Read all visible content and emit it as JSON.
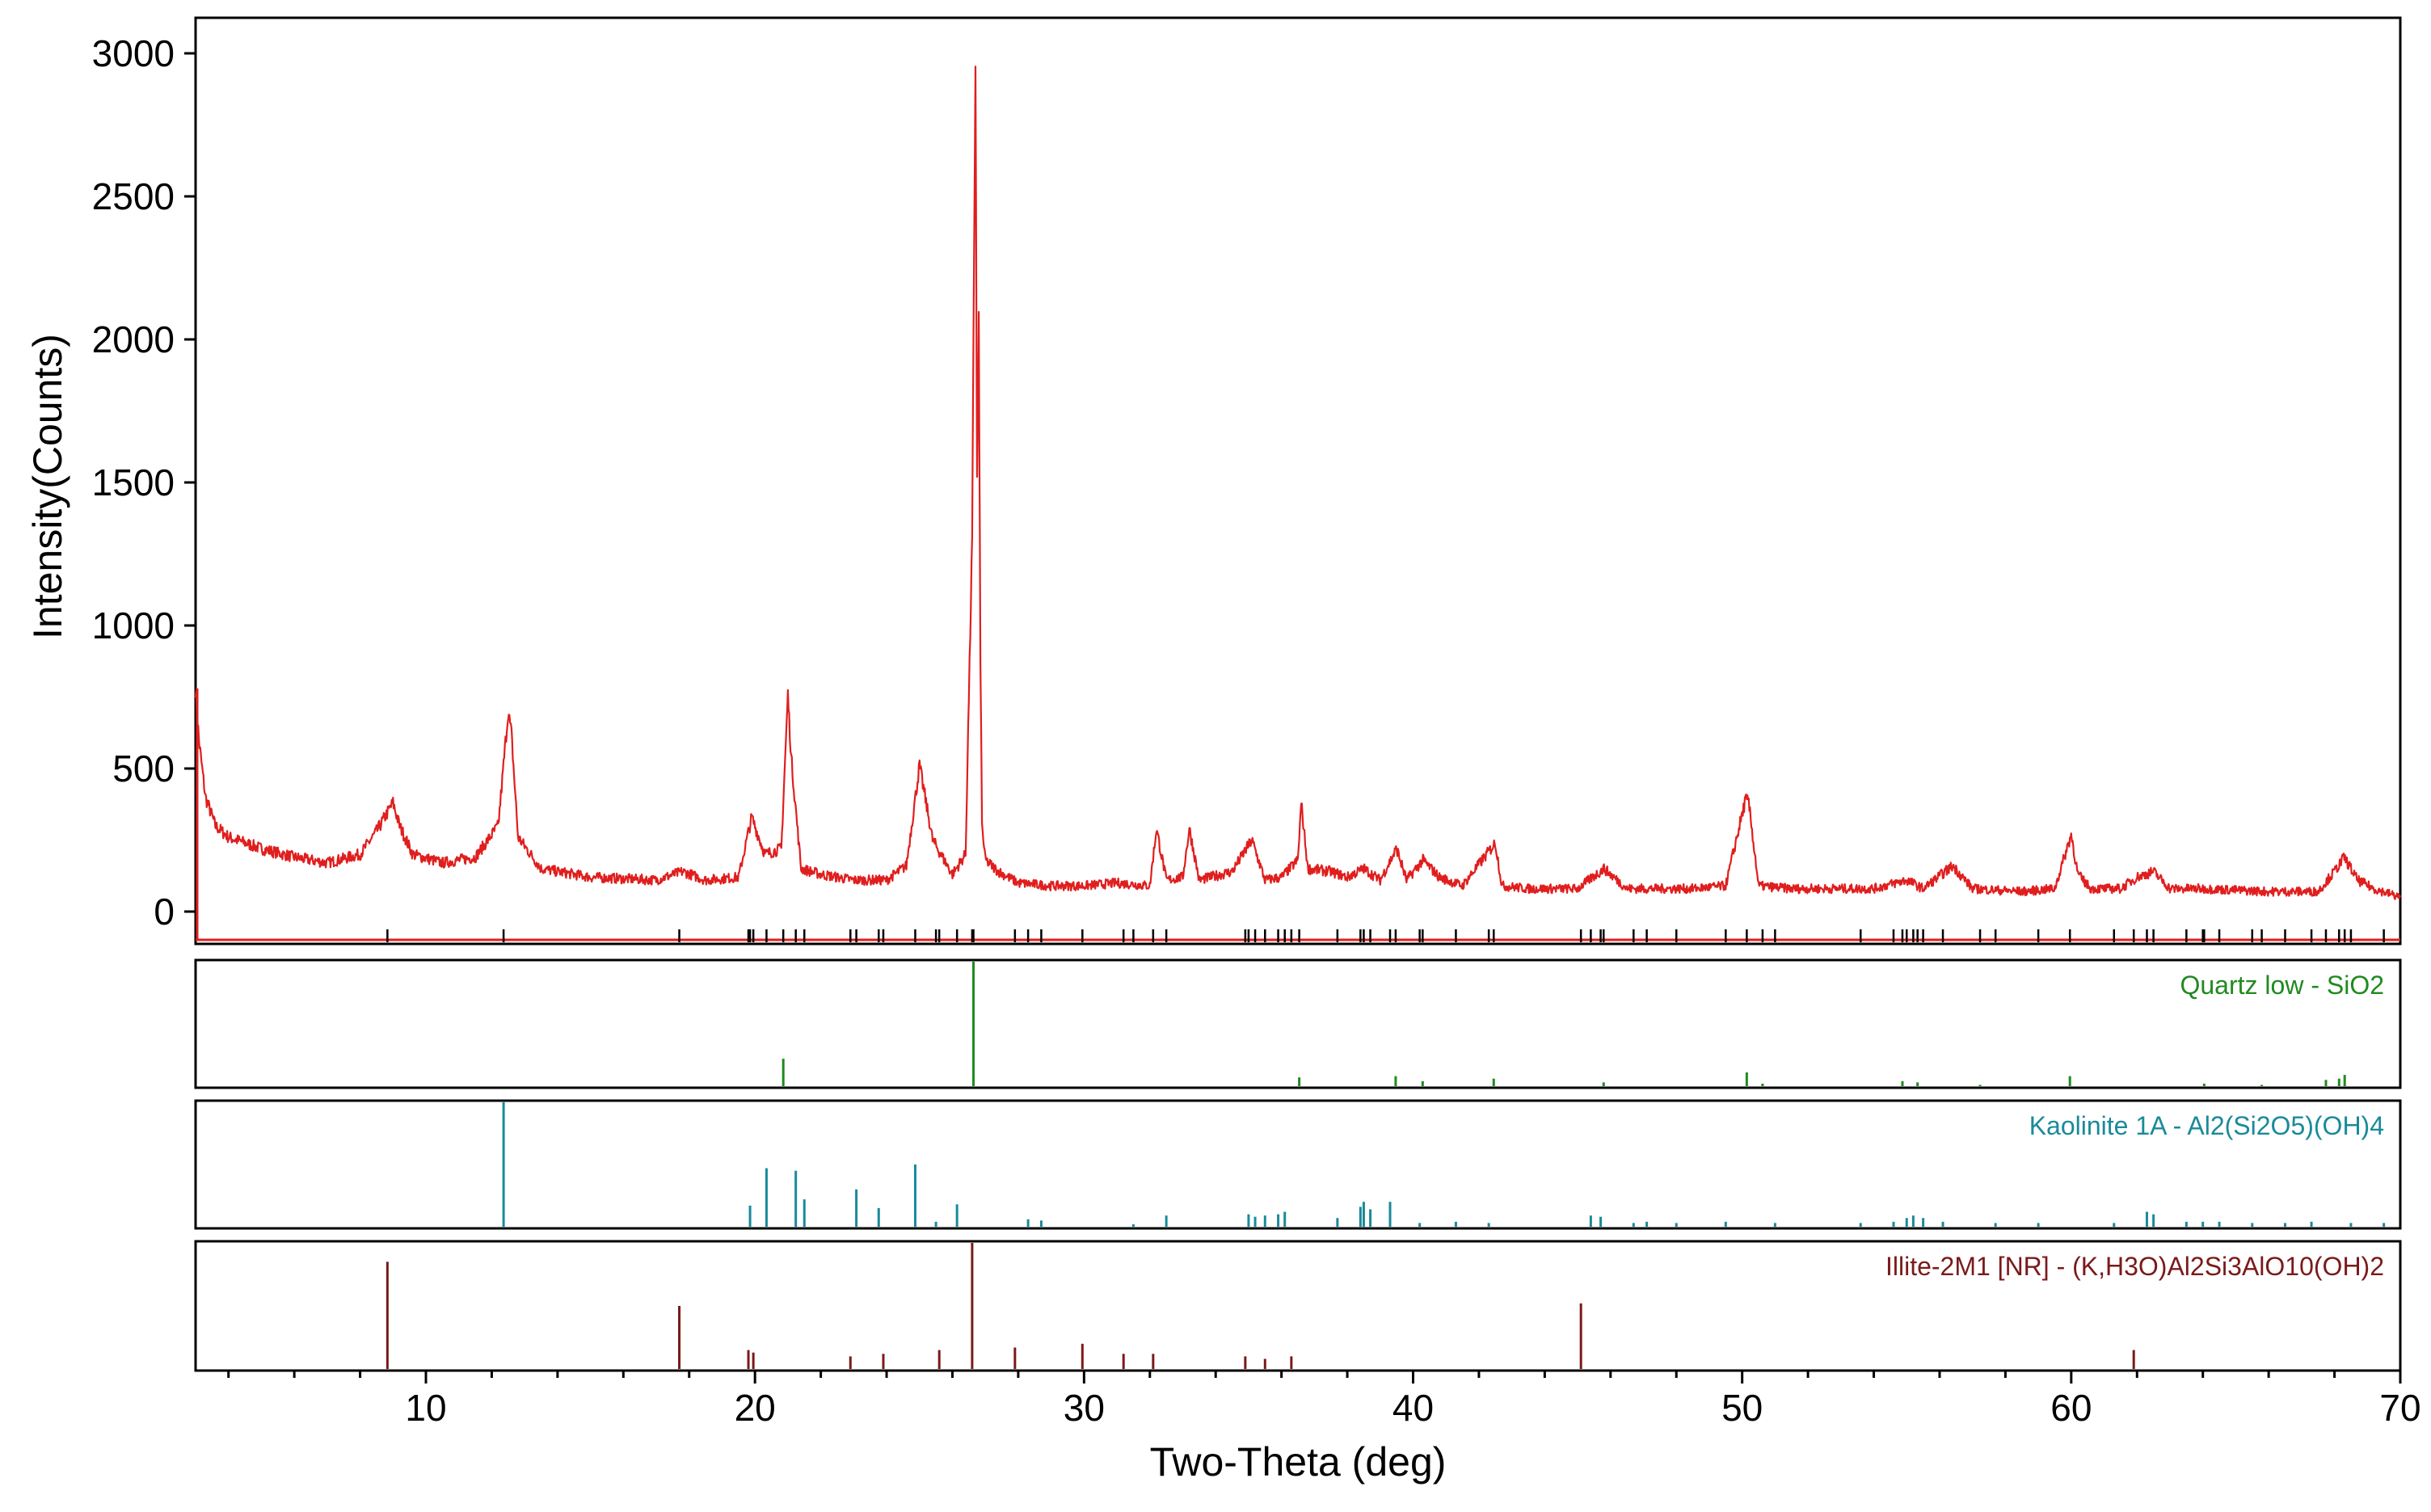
{
  "chart_data": {
    "type": "line",
    "xlabel": "Two-Theta (deg)",
    "ylabel": "Intensity(Counts)",
    "xlim": [
      3,
      70
    ],
    "ylim": [
      0,
      3100
    ],
    "xticks": [
      10,
      20,
      30,
      40,
      50,
      60,
      70
    ],
    "yticks": [
      0,
      500,
      1000,
      1500,
      2000,
      2500,
      3000
    ],
    "grid": false,
    "colors": {
      "pattern": "#e01e1e",
      "quartz": "#1f8a1f",
      "kaolinite": "#1a8a9a",
      "illite": "#7a1a1a",
      "axis": "#000000"
    },
    "series": [
      {
        "x": [
          3.0,
          3.1,
          3.3,
          3.6,
          4.0,
          4.5,
          5.0,
          6.0,
          7.0,
          8.0,
          8.5,
          8.8,
          9.0,
          9.2,
          9.6,
          10.5,
          11.5,
          12.2,
          12.5,
          12.6,
          12.8,
          13.5,
          15.0,
          17.0,
          17.8,
          18.5,
          19.5,
          19.9,
          20.3,
          20.8,
          21.0,
          21.1,
          21.4,
          22.0,
          23.0,
          24.0,
          24.6,
          25.0,
          25.4,
          26.0,
          26.4,
          26.6,
          26.7,
          26.75,
          26.8,
          26.85,
          26.9,
          27.0,
          27.4,
          28.0,
          29.0,
          30.0,
          31.0,
          32.0,
          32.2,
          32.5,
          33.0,
          33.2,
          33.5,
          34.5,
          35.1,
          35.5,
          36.0,
          36.5,
          36.6,
          36.8,
          37.5,
          38.0,
          38.5,
          39.0,
          39.5,
          39.8,
          40.3,
          40.8,
          41.5,
          42.5,
          42.7,
          43.5,
          45.0,
          45.8,
          46.5,
          47.5,
          48.5,
          49.5,
          50.1,
          50.2,
          50.5,
          51.5,
          53.0,
          54.0,
          55.0,
          55.5,
          56.4,
          57.0,
          58.5,
          59.5,
          60.0,
          60.2,
          60.6,
          61.5,
          62.0,
          62.5,
          63.0,
          64.0,
          66.0,
          67.5,
          68.0,
          68.3,
          68.7,
          69.2,
          70.0
        ],
        "values": [
          780,
          600,
          400,
          300,
          260,
          240,
          220,
          190,
          170,
          200,
          280,
          340,
          380,
          300,
          200,
          170,
          190,
          300,
          700,
          620,
          260,
          150,
          120,
          110,
          140,
          110,
          120,
          330,
          200,
          220,
          760,
          540,
          150,
          130,
          110,
          110,
          160,
          510,
          250,
          130,
          200,
          1300,
          2980,
          1500,
          2070,
          900,
          300,
          180,
          140,
          100,
          90,
          90,
          100,
          90,
          290,
          110,
          120,
          290,
          110,
          140,
          250,
          110,
          120,
          180,
          380,
          150,
          140,
          120,
          150,
          110,
          220,
          110,
          180,
          120,
          90,
          240,
          90,
          80,
          80,
          150,
          80,
          80,
          80,
          90,
          390,
          380,
          90,
          80,
          80,
          80,
          110,
          80,
          160,
          80,
          70,
          80,
          270,
          130,
          80,
          80,
          120,
          140,
          80,
          80,
          70,
          70,
          140,
          190,
          110,
          80,
          50
        ]
      }
    ],
    "phases": [
      {
        "label": "Quartz low - SiO2",
        "peaks": [
          {
            "x": 20.86,
            "rel": 22
          },
          {
            "x": 26.64,
            "rel": 100
          },
          {
            "x": 36.54,
            "rel": 7
          },
          {
            "x": 39.47,
            "rel": 8
          },
          {
            "x": 40.29,
            "rel": 4
          },
          {
            "x": 42.45,
            "rel": 6
          },
          {
            "x": 45.79,
            "rel": 3
          },
          {
            "x": 50.14,
            "rel": 11
          },
          {
            "x": 50.62,
            "rel": 2
          },
          {
            "x": 54.87,
            "rel": 4
          },
          {
            "x": 55.33,
            "rel": 3
          },
          {
            "x": 57.23,
            "rel": 1
          },
          {
            "x": 59.96,
            "rel": 8
          },
          {
            "x": 64.04,
            "rel": 2
          },
          {
            "x": 65.79,
            "rel": 1
          },
          {
            "x": 67.74,
            "rel": 5
          },
          {
            "x": 68.14,
            "rel": 6
          },
          {
            "x": 68.31,
            "rel": 9
          }
        ]
      },
      {
        "label": "Kaolinite 1A - Al2(Si2O5)(OH)4",
        "peaks": [
          {
            "x": 12.36,
            "rel": 100
          },
          {
            "x": 19.85,
            "rel": 17
          },
          {
            "x": 20.35,
            "rel": 47
          },
          {
            "x": 21.24,
            "rel": 45
          },
          {
            "x": 21.5,
            "rel": 22
          },
          {
            "x": 23.08,
            "rel": 30
          },
          {
            "x": 23.76,
            "rel": 15
          },
          {
            "x": 24.87,
            "rel": 50
          },
          {
            "x": 25.5,
            "rel": 4
          },
          {
            "x": 26.14,
            "rel": 18
          },
          {
            "x": 28.3,
            "rel": 6
          },
          {
            "x": 28.7,
            "rel": 5
          },
          {
            "x": 31.5,
            "rel": 2
          },
          {
            "x": 32.5,
            "rel": 9
          },
          {
            "x": 35.0,
            "rel": 10
          },
          {
            "x": 35.2,
            "rel": 8
          },
          {
            "x": 35.5,
            "rel": 9
          },
          {
            "x": 35.9,
            "rel": 10
          },
          {
            "x": 36.1,
            "rel": 12
          },
          {
            "x": 37.7,
            "rel": 7
          },
          {
            "x": 38.4,
            "rel": 16
          },
          {
            "x": 38.5,
            "rel": 20
          },
          {
            "x": 38.7,
            "rel": 14
          },
          {
            "x": 39.3,
            "rel": 20
          },
          {
            "x": 40.2,
            "rel": 3
          },
          {
            "x": 41.3,
            "rel": 4
          },
          {
            "x": 42.3,
            "rel": 3
          },
          {
            "x": 45.4,
            "rel": 9
          },
          {
            "x": 45.7,
            "rel": 8
          },
          {
            "x": 46.7,
            "rel": 3
          },
          {
            "x": 47.1,
            "rel": 4
          },
          {
            "x": 48.0,
            "rel": 3
          },
          {
            "x": 49.5,
            "rel": 4
          },
          {
            "x": 51.0,
            "rel": 3
          },
          {
            "x": 53.6,
            "rel": 3
          },
          {
            "x": 54.6,
            "rel": 4
          },
          {
            "x": 55.0,
            "rel": 7
          },
          {
            "x": 55.2,
            "rel": 9
          },
          {
            "x": 55.5,
            "rel": 7
          },
          {
            "x": 56.1,
            "rel": 4
          },
          {
            "x": 57.7,
            "rel": 3
          },
          {
            "x": 59.0,
            "rel": 3
          },
          {
            "x": 61.3,
            "rel": 3
          },
          {
            "x": 62.3,
            "rel": 12
          },
          {
            "x": 62.5,
            "rel": 10
          },
          {
            "x": 63.5,
            "rel": 4
          },
          {
            "x": 64.0,
            "rel": 4
          },
          {
            "x": 64.5,
            "rel": 4
          },
          {
            "x": 65.5,
            "rel": 3
          },
          {
            "x": 66.5,
            "rel": 3
          },
          {
            "x": 67.3,
            "rel": 4
          },
          {
            "x": 68.5,
            "rel": 3
          },
          {
            "x": 69.5,
            "rel": 3
          }
        ]
      },
      {
        "label": "Illite-2M1 [NR] - (K,H3O)Al2Si3AlO10(OH)2",
        "peaks": [
          {
            "x": 8.83,
            "rel": 85
          },
          {
            "x": 17.7,
            "rel": 50
          },
          {
            "x": 19.8,
            "rel": 15
          },
          {
            "x": 19.95,
            "rel": 13
          },
          {
            "x": 22.9,
            "rel": 10
          },
          {
            "x": 23.9,
            "rel": 12
          },
          {
            "x": 25.6,
            "rel": 15
          },
          {
            "x": 26.6,
            "rel": 100
          },
          {
            "x": 27.9,
            "rel": 17
          },
          {
            "x": 29.95,
            "rel": 20
          },
          {
            "x": 31.2,
            "rel": 12
          },
          {
            "x": 32.1,
            "rel": 12
          },
          {
            "x": 34.9,
            "rel": 10
          },
          {
            "x": 35.5,
            "rel": 8
          },
          {
            "x": 36.3,
            "rel": 10
          },
          {
            "x": 45.1,
            "rel": 52
          },
          {
            "x": 61.9,
            "rel": 15
          }
        ]
      }
    ]
  }
}
